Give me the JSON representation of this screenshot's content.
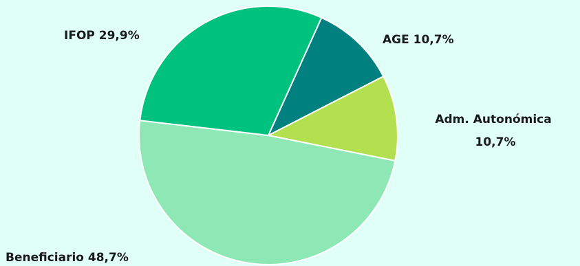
{
  "chart_data": {
    "type": "pie",
    "start_angle_deg": 24.3,
    "direction": "clockwise",
    "slices": [
      {
        "name": "AGE",
        "value": 10.7,
        "label": "AGE 10,7%",
        "label_lines": [
          "AGE 10,7%"
        ],
        "color": "#00807f"
      },
      {
        "name": "Adm. Autonómica",
        "value": 10.7,
        "label": "Adm. Autonómica 10,7%",
        "label_lines": [
          "Adm. Autonómica",
          "10,7%"
        ],
        "color": "#b3e04f"
      },
      {
        "name": "Beneficiario",
        "value": 48.7,
        "label": "Beneficiario 48,7%",
        "label_lines": [
          "Beneficiario 48,7%"
        ],
        "color": "#8de8b5"
      },
      {
        "name": "IFOP",
        "value": 29.9,
        "label": "IFOP 29,9%",
        "label_lines": [
          "IFOP 29,9%"
        ],
        "color": "#00c27f"
      }
    ]
  }
}
